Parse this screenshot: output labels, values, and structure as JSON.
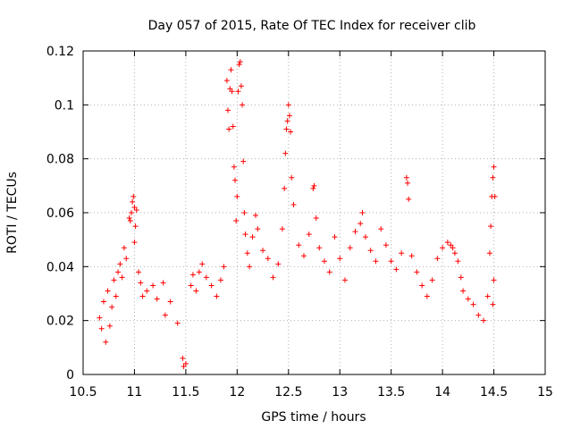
{
  "chart_data": {
    "type": "scatter",
    "title": "Day 057 of 2015, Rate Of TEC Index for receiver clib",
    "xlabel": "GPS time / hours",
    "ylabel": "ROTI / TECUs",
    "xlim": [
      10.5,
      15
    ],
    "ylim": [
      0,
      0.12
    ],
    "xticks": [
      10.5,
      11,
      11.5,
      12,
      12.5,
      13,
      13.5,
      14,
      14.5,
      15
    ],
    "xtick_labels": [
      "10.5",
      "11",
      "11.5",
      "12",
      "12.5",
      "13",
      "13.5",
      "14",
      "14.5",
      "15"
    ],
    "yticks": [
      0,
      0.02,
      0.04,
      0.06,
      0.08,
      0.1,
      0.12
    ],
    "ytick_labels": [
      "0",
      "0.02",
      "0.04",
      "0.06",
      "0.08",
      "0.1",
      "0.12"
    ],
    "grid": true,
    "marker": "plus",
    "color": "#ff0000",
    "series": [
      {
        "name": "ROTI",
        "points": [
          [
            10.66,
            0.021
          ],
          [
            10.68,
            0.017
          ],
          [
            10.7,
            0.027
          ],
          [
            10.72,
            0.012
          ],
          [
            10.74,
            0.031
          ],
          [
            10.76,
            0.018
          ],
          [
            10.78,
            0.025
          ],
          [
            10.8,
            0.035
          ],
          [
            10.82,
            0.029
          ],
          [
            10.84,
            0.038
          ],
          [
            10.86,
            0.041
          ],
          [
            10.88,
            0.036
          ],
          [
            10.9,
            0.047
          ],
          [
            10.92,
            0.043
          ],
          [
            10.95,
            0.058
          ],
          [
            10.96,
            0.057
          ],
          [
            10.97,
            0.06
          ],
          [
            10.98,
            0.064
          ],
          [
            10.99,
            0.066
          ],
          [
            11.0,
            0.062
          ],
          [
            11.01,
            0.055
          ],
          [
            11.02,
            0.061
          ],
          [
            11.0,
            0.049
          ],
          [
            11.04,
            0.038
          ],
          [
            11.06,
            0.034
          ],
          [
            11.08,
            0.029
          ],
          [
            11.12,
            0.031
          ],
          [
            11.18,
            0.033
          ],
          [
            11.22,
            0.028
          ],
          [
            11.28,
            0.034
          ],
          [
            11.3,
            0.022
          ],
          [
            11.35,
            0.027
          ],
          [
            11.42,
            0.019
          ],
          [
            11.47,
            0.006
          ],
          [
            11.48,
            0.003
          ],
          [
            11.5,
            0.004
          ],
          [
            11.55,
            0.033
          ],
          [
            11.57,
            0.037
          ],
          [
            11.6,
            0.031
          ],
          [
            11.63,
            0.038
          ],
          [
            11.66,
            0.041
          ],
          [
            11.7,
            0.036
          ],
          [
            11.75,
            0.033
          ],
          [
            11.8,
            0.029
          ],
          [
            11.84,
            0.035
          ],
          [
            11.87,
            0.04
          ],
          [
            11.9,
            0.109
          ],
          [
            11.91,
            0.098
          ],
          [
            11.92,
            0.091
          ],
          [
            11.93,
            0.106
          ],
          [
            11.94,
            0.113
          ],
          [
            11.95,
            0.105
          ],
          [
            11.96,
            0.092
          ],
          [
            11.97,
            0.077
          ],
          [
            11.98,
            0.072
          ],
          [
            11.99,
            0.057
          ],
          [
            12.0,
            0.066
          ],
          [
            12.01,
            0.105
          ],
          [
            12.02,
            0.115
          ],
          [
            12.03,
            0.116
          ],
          [
            12.04,
            0.107
          ],
          [
            12.05,
            0.1
          ],
          [
            12.06,
            0.079
          ],
          [
            12.07,
            0.06
          ],
          [
            12.08,
            0.052
          ],
          [
            12.1,
            0.045
          ],
          [
            12.12,
            0.04
          ],
          [
            12.15,
            0.051
          ],
          [
            12.18,
            0.059
          ],
          [
            12.2,
            0.054
          ],
          [
            12.25,
            0.046
          ],
          [
            12.3,
            0.043
          ],
          [
            12.35,
            0.036
          ],
          [
            12.4,
            0.041
          ],
          [
            12.44,
            0.054
          ],
          [
            12.46,
            0.069
          ],
          [
            12.47,
            0.082
          ],
          [
            12.48,
            0.091
          ],
          [
            12.49,
            0.094
          ],
          [
            12.5,
            0.1
          ],
          [
            12.51,
            0.096
          ],
          [
            12.52,
            0.09
          ],
          [
            12.53,
            0.073
          ],
          [
            12.55,
            0.063
          ],
          [
            12.6,
            0.048
          ],
          [
            12.65,
            0.044
          ],
          [
            12.7,
            0.052
          ],
          [
            12.74,
            0.069
          ],
          [
            12.75,
            0.07
          ],
          [
            12.77,
            0.058
          ],
          [
            12.8,
            0.047
          ],
          [
            12.85,
            0.042
          ],
          [
            12.9,
            0.038
          ],
          [
            12.95,
            0.051
          ],
          [
            13.0,
            0.043
          ],
          [
            13.05,
            0.035
          ],
          [
            13.1,
            0.047
          ],
          [
            13.15,
            0.053
          ],
          [
            13.2,
            0.056
          ],
          [
            13.22,
            0.06
          ],
          [
            13.25,
            0.051
          ],
          [
            13.3,
            0.046
          ],
          [
            13.35,
            0.042
          ],
          [
            13.4,
            0.054
          ],
          [
            13.45,
            0.048
          ],
          [
            13.5,
            0.042
          ],
          [
            13.55,
            0.039
          ],
          [
            13.6,
            0.045
          ],
          [
            13.65,
            0.073
          ],
          [
            13.66,
            0.071
          ],
          [
            13.67,
            0.065
          ],
          [
            13.7,
            0.044
          ],
          [
            13.75,
            0.038
          ],
          [
            13.8,
            0.033
          ],
          [
            13.85,
            0.029
          ],
          [
            13.9,
            0.035
          ],
          [
            13.95,
            0.043
          ],
          [
            14.0,
            0.047
          ],
          [
            14.05,
            0.049
          ],
          [
            14.08,
            0.048
          ],
          [
            14.1,
            0.047
          ],
          [
            14.12,
            0.045
          ],
          [
            14.15,
            0.042
          ],
          [
            14.18,
            0.036
          ],
          [
            14.2,
            0.031
          ],
          [
            14.25,
            0.028
          ],
          [
            14.3,
            0.026
          ],
          [
            14.35,
            0.022
          ],
          [
            14.4,
            0.02
          ],
          [
            14.44,
            0.029
          ],
          [
            14.46,
            0.045
          ],
          [
            14.47,
            0.055
          ],
          [
            14.48,
            0.066
          ],
          [
            14.49,
            0.073
          ],
          [
            14.5,
            0.077
          ],
          [
            14.51,
            0.066
          ],
          [
            14.5,
            0.035
          ],
          [
            14.49,
            0.026
          ]
        ]
      }
    ]
  }
}
